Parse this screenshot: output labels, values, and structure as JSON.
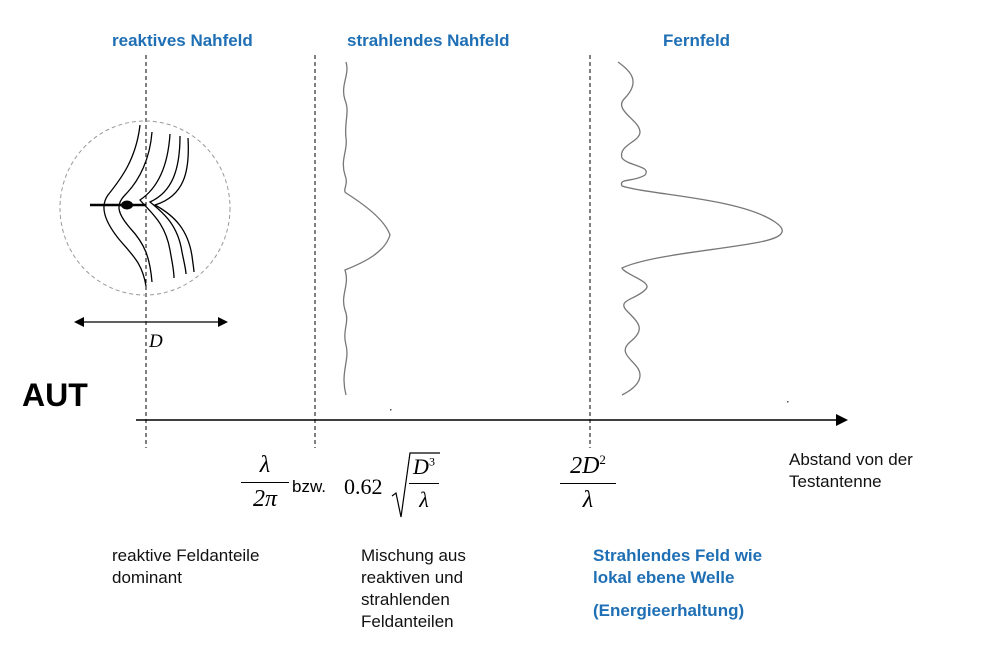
{
  "headers": {
    "reactive_near": "reaktives Nahfeld",
    "radiating_near": "strahlendes Nahfeld",
    "far": "Fernfeld"
  },
  "aut_label": "AUT",
  "d_label": "D",
  "axis_label": {
    "line1": "Abstand von der",
    "line2": "Testantenne"
  },
  "boundary1": {
    "num": "λ",
    "den": "2π",
    "connector": "bzw.",
    "coef": "0.62",
    "root_num": "D",
    "root_num_exp": "3",
    "root_den": "λ"
  },
  "boundary2": {
    "num": "2D",
    "num_exp": "2",
    "den": "λ"
  },
  "notes": {
    "reactive": {
      "l1": "reaktive Feldanteile",
      "l2": "dominant"
    },
    "mixed": {
      "l1": "Mischung aus",
      "l2": "reaktiven und",
      "l3": "strahlenden",
      "l4": "Feldanteilen"
    },
    "radiating": {
      "l1": "Strahlendes Feld wie",
      "l2": "lokal ebene Welle",
      "l3": "(Energieerhaltung)"
    }
  },
  "colors": {
    "accent_blue": "#1f6fb5",
    "line": "#000000",
    "pattern": "#777777",
    "circle": "#999999"
  }
}
